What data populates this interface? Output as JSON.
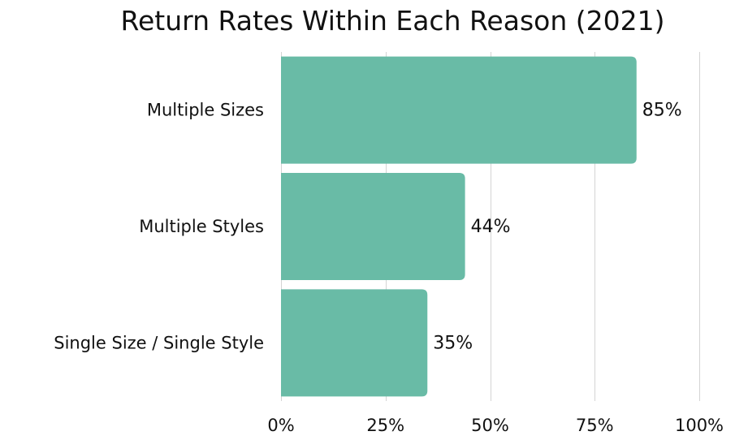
{
  "chart_data": {
    "type": "bar",
    "orientation": "horizontal",
    "title": "Return Rates Within Each Reason (2021)",
    "xlabel": "",
    "ylabel": "",
    "categories": [
      "Multiple Sizes",
      "Multiple Styles",
      "Single Size / Single Style"
    ],
    "values": [
      85,
      44,
      35
    ],
    "value_labels": [
      "85%",
      "44%",
      "35%"
    ],
    "xlim": [
      0,
      100
    ],
    "xticks": [
      0,
      25,
      50,
      75,
      100
    ],
    "xtick_labels": [
      "0%",
      "25%",
      "50%",
      "75%",
      "100%"
    ],
    "grid": "vertical",
    "legend": "none",
    "bar_color": "#69bba6"
  }
}
